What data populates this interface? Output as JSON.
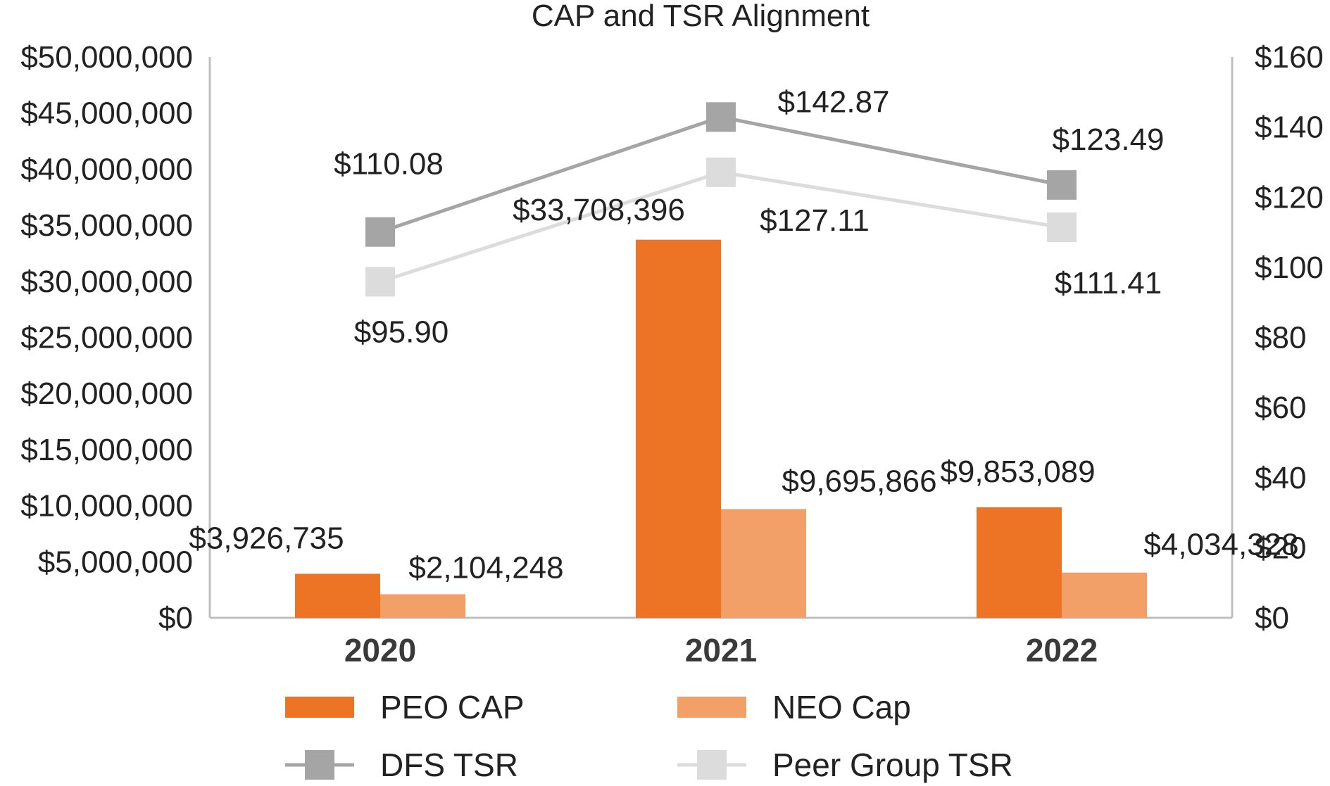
{
  "chart_data": {
    "type": "bar",
    "title": "CAP and TSR Alignment",
    "categories": [
      "2020",
      "2021",
      "2022"
    ],
    "y_left": {
      "range": [
        0,
        50000000
      ],
      "ticks": [
        "$0",
        "$5,000,000",
        "$10,000,000",
        "$15,000,000",
        "$20,000,000",
        "$25,000,000",
        "$30,000,000",
        "$35,000,000",
        "$40,000,000",
        "$45,000,000",
        "$50,000,000"
      ]
    },
    "y_right": {
      "range": [
        0,
        160
      ],
      "ticks": [
        "$0",
        "$20",
        "$40",
        "$60",
        "$80",
        "$100",
        "$120",
        "$140",
        "$160"
      ]
    },
    "series": [
      {
        "name": "PEO CAP",
        "type": "bar",
        "axis": "left",
        "color": "#ED7325",
        "values": [
          3926735,
          33708396,
          9853089
        ],
        "labels": [
          "$3,926,735",
          "$33,708,396",
          "$9,853,089"
        ]
      },
      {
        "name": "NEO Cap",
        "type": "bar",
        "axis": "left",
        "color": "#F3A068",
        "values": [
          2104248,
          9695866,
          4034328
        ],
        "labels": [
          "$2,104,248",
          "$9,695,866",
          "$4,034,328"
        ]
      },
      {
        "name": "DFS TSR",
        "type": "line",
        "axis": "right",
        "color": "#A5A5A5",
        "values": [
          110.08,
          142.87,
          123.49
        ],
        "labels": [
          "$110.08",
          "$142.87",
          "$123.49"
        ]
      },
      {
        "name": "Peer Group TSR",
        "type": "line",
        "axis": "right",
        "color": "#DCDCDC",
        "values": [
          95.9,
          127.11,
          111.41
        ],
        "labels": [
          "$95.90",
          "$127.11",
          "$111.41"
        ]
      }
    ],
    "legend": "bottom",
    "grid": false
  }
}
